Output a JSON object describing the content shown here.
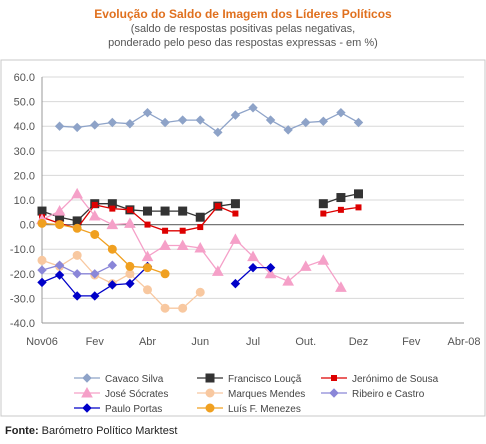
{
  "header": {
    "title": "Evolução do Saldo  de Imagem dos Líderes Políticos",
    "subtitle1": "(saldo de respostas positivas pelas negativas,",
    "subtitle2": "ponderado pelo peso das respostas expressas - em %)"
  },
  "footer": {
    "source_label": "Fonte:",
    "source_text": " Barómetro Político Marktest"
  },
  "chart_data": {
    "type": "line",
    "title": "Evolução do Saldo  de Imagem dos Líderes Políticos",
    "subtitle": "(saldo de respostas positivas pelas negativas, ponderado pelo peso das respostas expressas - em %)",
    "x_points": 25,
    "x_tick_labels": [
      {
        "index": 0,
        "label": "Nov06"
      },
      {
        "index": 3,
        "label": "Fev"
      },
      {
        "index": 6,
        "label": "Abr"
      },
      {
        "index": 9,
        "label": "Jun"
      },
      {
        "index": 12,
        "label": "Jul"
      },
      {
        "index": 15,
        "label": "Out."
      },
      {
        "index": 18,
        "label": "Dez"
      },
      {
        "index": 21,
        "label": "Fev"
      },
      {
        "index": 24,
        "label": "Abr-08"
      }
    ],
    "ylim": [
      -40,
      60
    ],
    "y_ticks": [
      "60.0",
      "50.0",
      "40.0",
      "30.0",
      "20.0",
      "10.0",
      "0.0",
      "-10.0",
      "-20.0",
      "-30.0",
      "-40.0"
    ],
    "y_tick_values": [
      60,
      50,
      40,
      30,
      20,
      10,
      0,
      -10,
      -20,
      -30,
      -40
    ],
    "grid": true,
    "legend_position": "bottom",
    "series": [
      {
        "name": "Cavaco Silva",
        "color": "#8ea3c8",
        "marker": "diamond",
        "values": [
          40,
          39.5,
          40.5,
          41.5,
          41,
          45.5,
          41.5,
          42.5,
          42.5,
          37.5,
          44.5,
          47.5,
          42.5,
          38.5,
          41.5,
          42,
          45.5,
          41.5
        ],
        "x_index": [
          1,
          2,
          3,
          4,
          5,
          6,
          7,
          8,
          9,
          10,
          11,
          12,
          13,
          14,
          15,
          16,
          17,
          18
        ]
      },
      {
        "name": "Francisco Louçã",
        "color": "#333333",
        "marker": "square",
        "values": [
          5.5,
          3,
          1.5,
          8.5,
          8.5,
          6,
          5.5,
          5.5,
          5.5,
          3,
          7.5,
          8.5,
          null,
          null,
          null,
          null,
          8.5,
          11,
          12.5
        ]
      },
      {
        "name": "Jerónimo de Sousa",
        "color": "#dd0000",
        "marker": "square-small",
        "values": [
          3,
          0.5,
          -1.5,
          8,
          6.5,
          6,
          0,
          -2.5,
          -2.5,
          -1,
          7.5,
          4.5,
          null,
          null,
          null,
          null,
          4.5,
          6,
          7
        ]
      },
      {
        "name": "José Sócrates",
        "color": "#f5a0c8",
        "marker": "triangle",
        "values": [
          2,
          5.5,
          12.5,
          3.5,
          0,
          0.5,
          -13,
          -8.5,
          -8.5,
          -9.5,
          -19,
          -6,
          -13,
          -20,
          -23,
          -17,
          -14.5,
          -25.5
        ]
      },
      {
        "name": "Marques Mendes",
        "color": "#f8c8a0",
        "marker": "circle",
        "values": [
          -14.5,
          -17,
          -12.5,
          -20.5,
          -24,
          -20,
          -26.5,
          -34,
          -34,
          -27.5
        ]
      },
      {
        "name": "Ribeiro e Castro",
        "color": "#8a86d8",
        "marker": "diamond",
        "values": [
          -18.5,
          -16.5,
          -20,
          -20,
          -16.5
        ]
      },
      {
        "name": "Paulo Portas",
        "color": "#0000c8",
        "marker": "diamond",
        "values": [
          -23.5,
          -20.5,
          -29,
          -29,
          -24.5,
          -24,
          -17,
          null,
          null,
          null,
          null,
          -24,
          -17.5,
          -17.5
        ]
      },
      {
        "name": "Luís F. Menezes",
        "color": "#f0a020",
        "marker": "circle",
        "values": [
          0.5,
          0,
          -1.5,
          -4,
          -10,
          -17,
          -17.5,
          -20
        ]
      }
    ]
  }
}
